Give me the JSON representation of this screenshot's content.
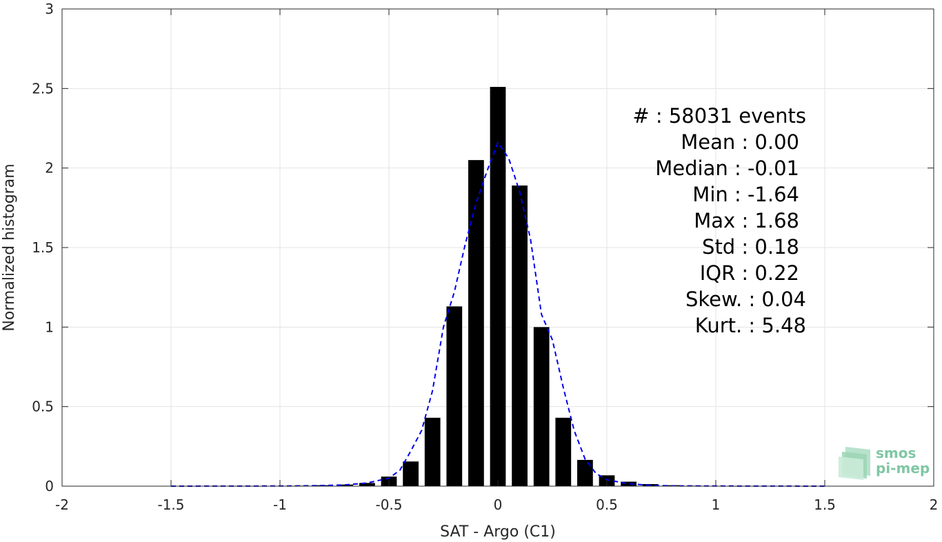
{
  "chart_data": {
    "type": "bar",
    "xlabel": "SAT - Argo (C1)",
    "ylabel": "Normalized histogram",
    "xlim": [
      -2,
      2
    ],
    "ylim": [
      0,
      3
    ],
    "xticks": [
      -2,
      -1.5,
      -1,
      -0.5,
      0,
      0.5,
      1,
      1.5,
      2
    ],
    "xtick_labels": [
      "-2",
      "-1.5",
      "-1",
      "-0.5",
      "0",
      "0.5",
      "1",
      "1.5",
      "2"
    ],
    "yticks": [
      0,
      0.5,
      1,
      1.5,
      2,
      2.5,
      3
    ],
    "ytick_labels": [
      "0",
      "0.5",
      "1",
      "1.5",
      "2",
      "2.5",
      "3"
    ],
    "grid": true,
    "bar_color": "#000000",
    "curve_color": "#0000ee",
    "bars": {
      "x": [
        -1.5,
        -1.4,
        -1.3,
        -1.2,
        -1.1,
        -1.0,
        -0.9,
        -0.8,
        -0.7,
        -0.6,
        -0.5,
        -0.4,
        -0.3,
        -0.2,
        -0.1,
        0.0,
        0.1,
        0.2,
        0.3,
        0.4,
        0.5,
        0.6,
        0.7,
        0.8,
        0.9,
        1.0,
        1.1,
        1.2,
        1.3,
        1.4,
        1.5
      ],
      "values": [
        0.002,
        0.001,
        0.001,
        0.001,
        0.001,
        0.002,
        0.003,
        0.006,
        0.01,
        0.02,
        0.06,
        0.155,
        0.43,
        1.13,
        2.05,
        2.51,
        1.89,
        1.0,
        0.43,
        0.165,
        0.068,
        0.028,
        0.013,
        0.006,
        0.003,
        0.002,
        0.001,
        0.001,
        0.001,
        0.001,
        0.002
      ]
    },
    "curve": {
      "style": "dashed",
      "x": [
        -1.5,
        -1.0,
        -0.9,
        -0.8,
        -0.7,
        -0.6,
        -0.5,
        -0.45,
        -0.4,
        -0.35,
        -0.3,
        -0.25,
        -0.2,
        -0.15,
        -0.1,
        -0.05,
        0.0,
        0.05,
        0.1,
        0.15,
        0.2,
        0.25,
        0.3,
        0.35,
        0.4,
        0.45,
        0.5,
        0.6,
        0.7,
        0.8,
        1.0,
        1.5
      ],
      "y": [
        0.0,
        0.001,
        0.002,
        0.004,
        0.008,
        0.02,
        0.05,
        0.1,
        0.22,
        0.35,
        0.6,
        1.0,
        1.22,
        1.52,
        1.78,
        1.98,
        2.16,
        2.06,
        1.85,
        1.55,
        1.08,
        0.92,
        0.62,
        0.35,
        0.17,
        0.08,
        0.04,
        0.015,
        0.005,
        0.002,
        0.001,
        0.0
      ]
    },
    "stats": [
      {
        "label": "#  : 58031 events",
        "align": "right-far"
      },
      {
        "label": "Mean : 0.00",
        "align": "right-near"
      },
      {
        "label": "Median : -0.01",
        "align": "right-near"
      },
      {
        "label": "Min : -1.64",
        "align": "right-near"
      },
      {
        "label": "Max : 1.68",
        "align": "right-near"
      },
      {
        "label": "Std : 0.18",
        "align": "right-near"
      },
      {
        "label": "IQR : 0.22",
        "align": "right-near"
      },
      {
        "label": "Skew. : 0.04",
        "align": "right-far"
      },
      {
        "label": "Kurt. : 5.48",
        "align": "right-far"
      }
    ],
    "watermark": {
      "line1": "smos",
      "line2": "pi-mep"
    }
  }
}
